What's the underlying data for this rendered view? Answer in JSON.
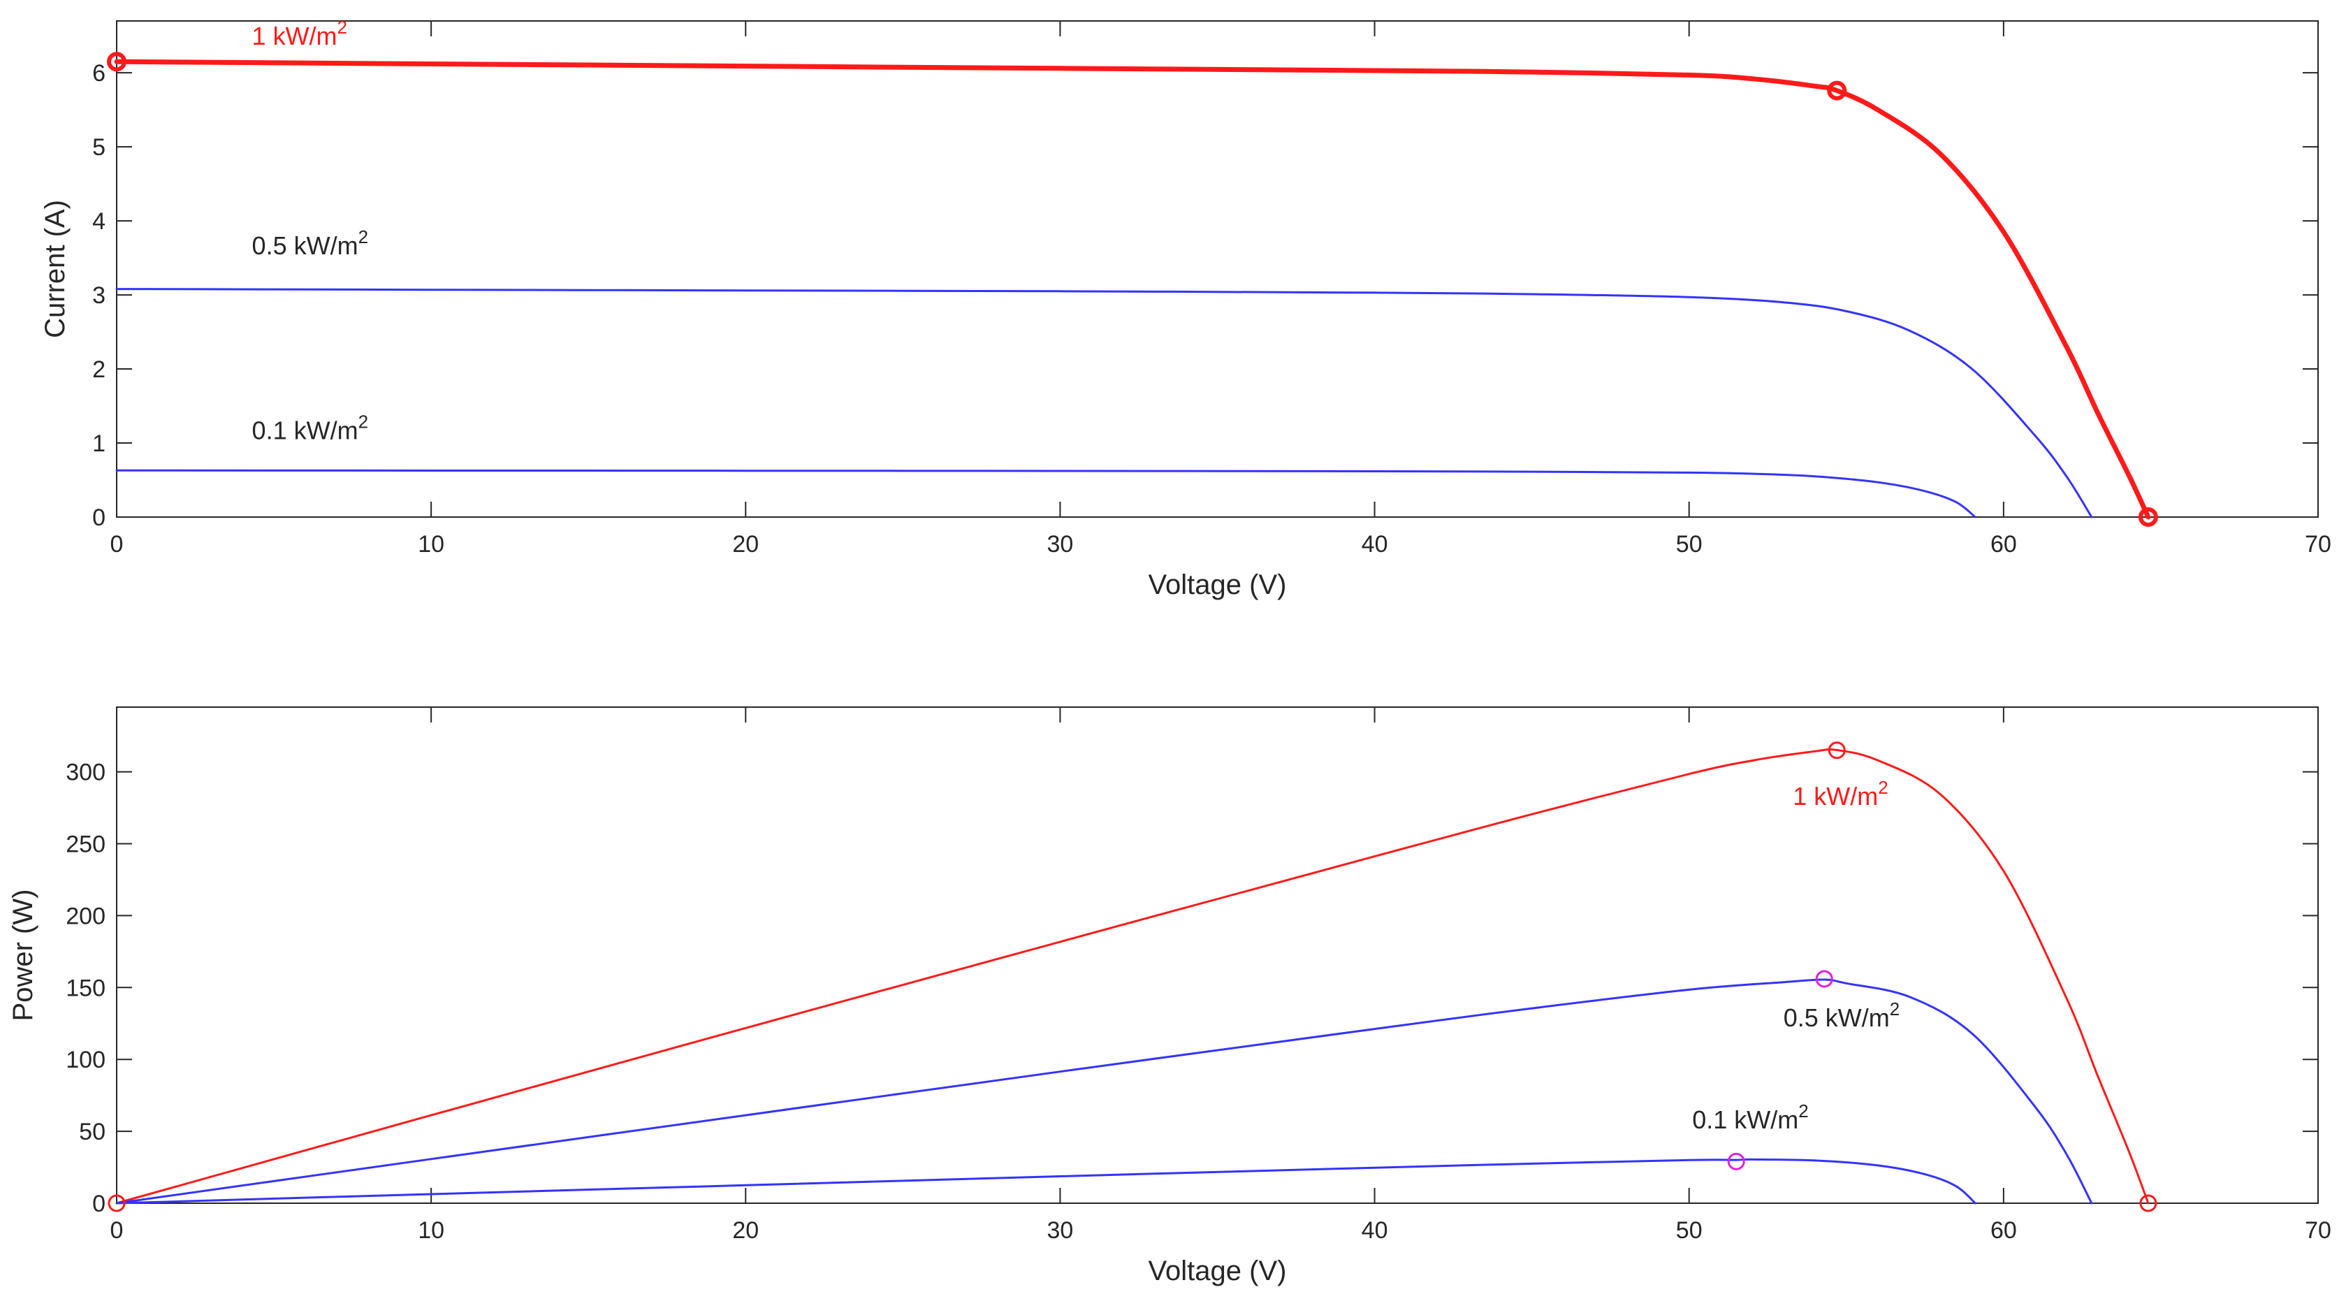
{
  "colors": {
    "red": "#ff1a1a",
    "blue": "#3333ff",
    "magenta": "#e020e0",
    "axis": "#262626",
    "background": "#ffffff"
  },
  "chart_data": [
    {
      "type": "line",
      "title": "",
      "xlabel": "Voltage (V)",
      "ylabel": "Current (A)",
      "xlim": [
        0,
        70
      ],
      "ylim": [
        0,
        6.7
      ],
      "xticks": [
        "0",
        "10",
        "20",
        "30",
        "40",
        "50",
        "60",
        "70"
      ],
      "yticks": [
        "0",
        "1",
        "2",
        "3",
        "4",
        "5",
        "6"
      ],
      "grid": false,
      "series": [
        {
          "name": "1 kW/m2",
          "color": "red",
          "bold": true,
          "x": [
            0,
            10,
            20,
            30,
            40,
            45,
            50,
            52,
            54,
            54.7,
            56,
            58,
            60,
            62,
            63,
            64,
            64.6
          ],
          "y": [
            6.15,
            6.12,
            6.09,
            6.06,
            6.03,
            6.01,
            5.97,
            5.92,
            5.82,
            5.76,
            5.5,
            4.9,
            3.85,
            2.3,
            1.4,
            0.55,
            0
          ]
        },
        {
          "name": "0.5 kW/m2",
          "color": "blue",
          "bold": false,
          "x": [
            0,
            10,
            20,
            30,
            40,
            45,
            50,
            53,
            55,
            57,
            59,
            61,
            62,
            62.8
          ],
          "y": [
            3.08,
            3.07,
            3.06,
            3.05,
            3.03,
            3.01,
            2.97,
            2.9,
            2.78,
            2.52,
            2.0,
            1.1,
            0.55,
            0
          ]
        },
        {
          "name": "0.1 kW/m2",
          "color": "blue",
          "bold": false,
          "x": [
            0,
            10,
            20,
            30,
            40,
            45,
            50,
            52,
            54,
            56,
            57.5,
            58.5,
            59.1
          ],
          "y": [
            0.63,
            0.628,
            0.626,
            0.623,
            0.618,
            0.612,
            0.6,
            0.585,
            0.55,
            0.47,
            0.35,
            0.2,
            0
          ]
        }
      ],
      "markers": [
        {
          "x": 0,
          "y": 6.15,
          "color": "red"
        },
        {
          "x": 54.7,
          "y": 5.76,
          "color": "red"
        },
        {
          "x": 64.6,
          "y": 0,
          "color": "red"
        }
      ],
      "annotations": [
        {
          "text": "1 kW/m",
          "sup": "2",
          "x": 4.3,
          "y": 6.38,
          "color": "red"
        },
        {
          "text": "0.5 kW/m",
          "sup": "2",
          "x": 4.3,
          "y": 3.55,
          "color": "black"
        },
        {
          "text": "0.1 kW/m",
          "sup": "2",
          "x": 4.3,
          "y": 1.05,
          "color": "black"
        }
      ]
    },
    {
      "type": "line",
      "title": "",
      "xlabel": "Voltage (V)",
      "ylabel": "Power (W)",
      "xlim": [
        0,
        70
      ],
      "ylim": [
        0,
        345
      ],
      "xticks": [
        "0",
        "10",
        "20",
        "30",
        "40",
        "50",
        "60",
        "70"
      ],
      "yticks": [
        "0",
        "50",
        "100",
        "150",
        "200",
        "250",
        "300"
      ],
      "grid": false,
      "series": [
        {
          "name": "1 kW/m2",
          "color": "red",
          "bold": false,
          "x": [
            0,
            10,
            20,
            30,
            40,
            45,
            50,
            52,
            54,
            54.7,
            56,
            58,
            60,
            62,
            63,
            64,
            64.6
          ],
          "y": [
            0,
            61.2,
            121.8,
            181.8,
            241.2,
            270.5,
            298.5,
            307.8,
            314.3,
            315.1,
            308.0,
            284.2,
            231.0,
            142.6,
            88.2,
            35.2,
            0
          ]
        },
        {
          "name": "0.5 kW/m2",
          "color": "blue",
          "bold": false,
          "x": [
            0,
            10,
            20,
            30,
            40,
            45,
            50,
            53,
            54.3,
            55,
            57,
            59,
            61,
            62,
            62.8
          ],
          "y": [
            0,
            30.7,
            61.2,
            91.5,
            121.2,
            135.5,
            148.5,
            153.7,
            155.5,
            152.9,
            143.6,
            118.0,
            67.1,
            34.1,
            0
          ]
        },
        {
          "name": "0.1 kW/m2",
          "color": "blue",
          "bold": false,
          "x": [
            0,
            10,
            20,
            30,
            40,
            45,
            50,
            51.5,
            52,
            54,
            56,
            57.5,
            58.5,
            59.1
          ],
          "y": [
            0,
            6.3,
            12.5,
            18.7,
            24.7,
            27.5,
            30.0,
            30.1,
            30.4,
            29.7,
            26.3,
            20.1,
            11.7,
            0
          ]
        }
      ],
      "markers": [
        {
          "x": 0,
          "y": 0,
          "color": "red"
        },
        {
          "x": 54.7,
          "y": 315,
          "color": "red"
        },
        {
          "x": 54.3,
          "y": 156,
          "color": "magenta"
        },
        {
          "x": 51.5,
          "y": 29,
          "color": "magenta"
        },
        {
          "x": 64.6,
          "y": 0,
          "color": "red"
        }
      ],
      "annotations": [
        {
          "text": "1 kW/m",
          "sup": "2",
          "x": 53.3,
          "y": 277,
          "color": "red"
        },
        {
          "text": "0.5 kW/m",
          "sup": "2",
          "x": 53.0,
          "y": 123,
          "color": "black"
        },
        {
          "text": "0.1 kW/m",
          "sup": "2",
          "x": 50.1,
          "y": 52,
          "color": "black"
        }
      ]
    }
  ]
}
